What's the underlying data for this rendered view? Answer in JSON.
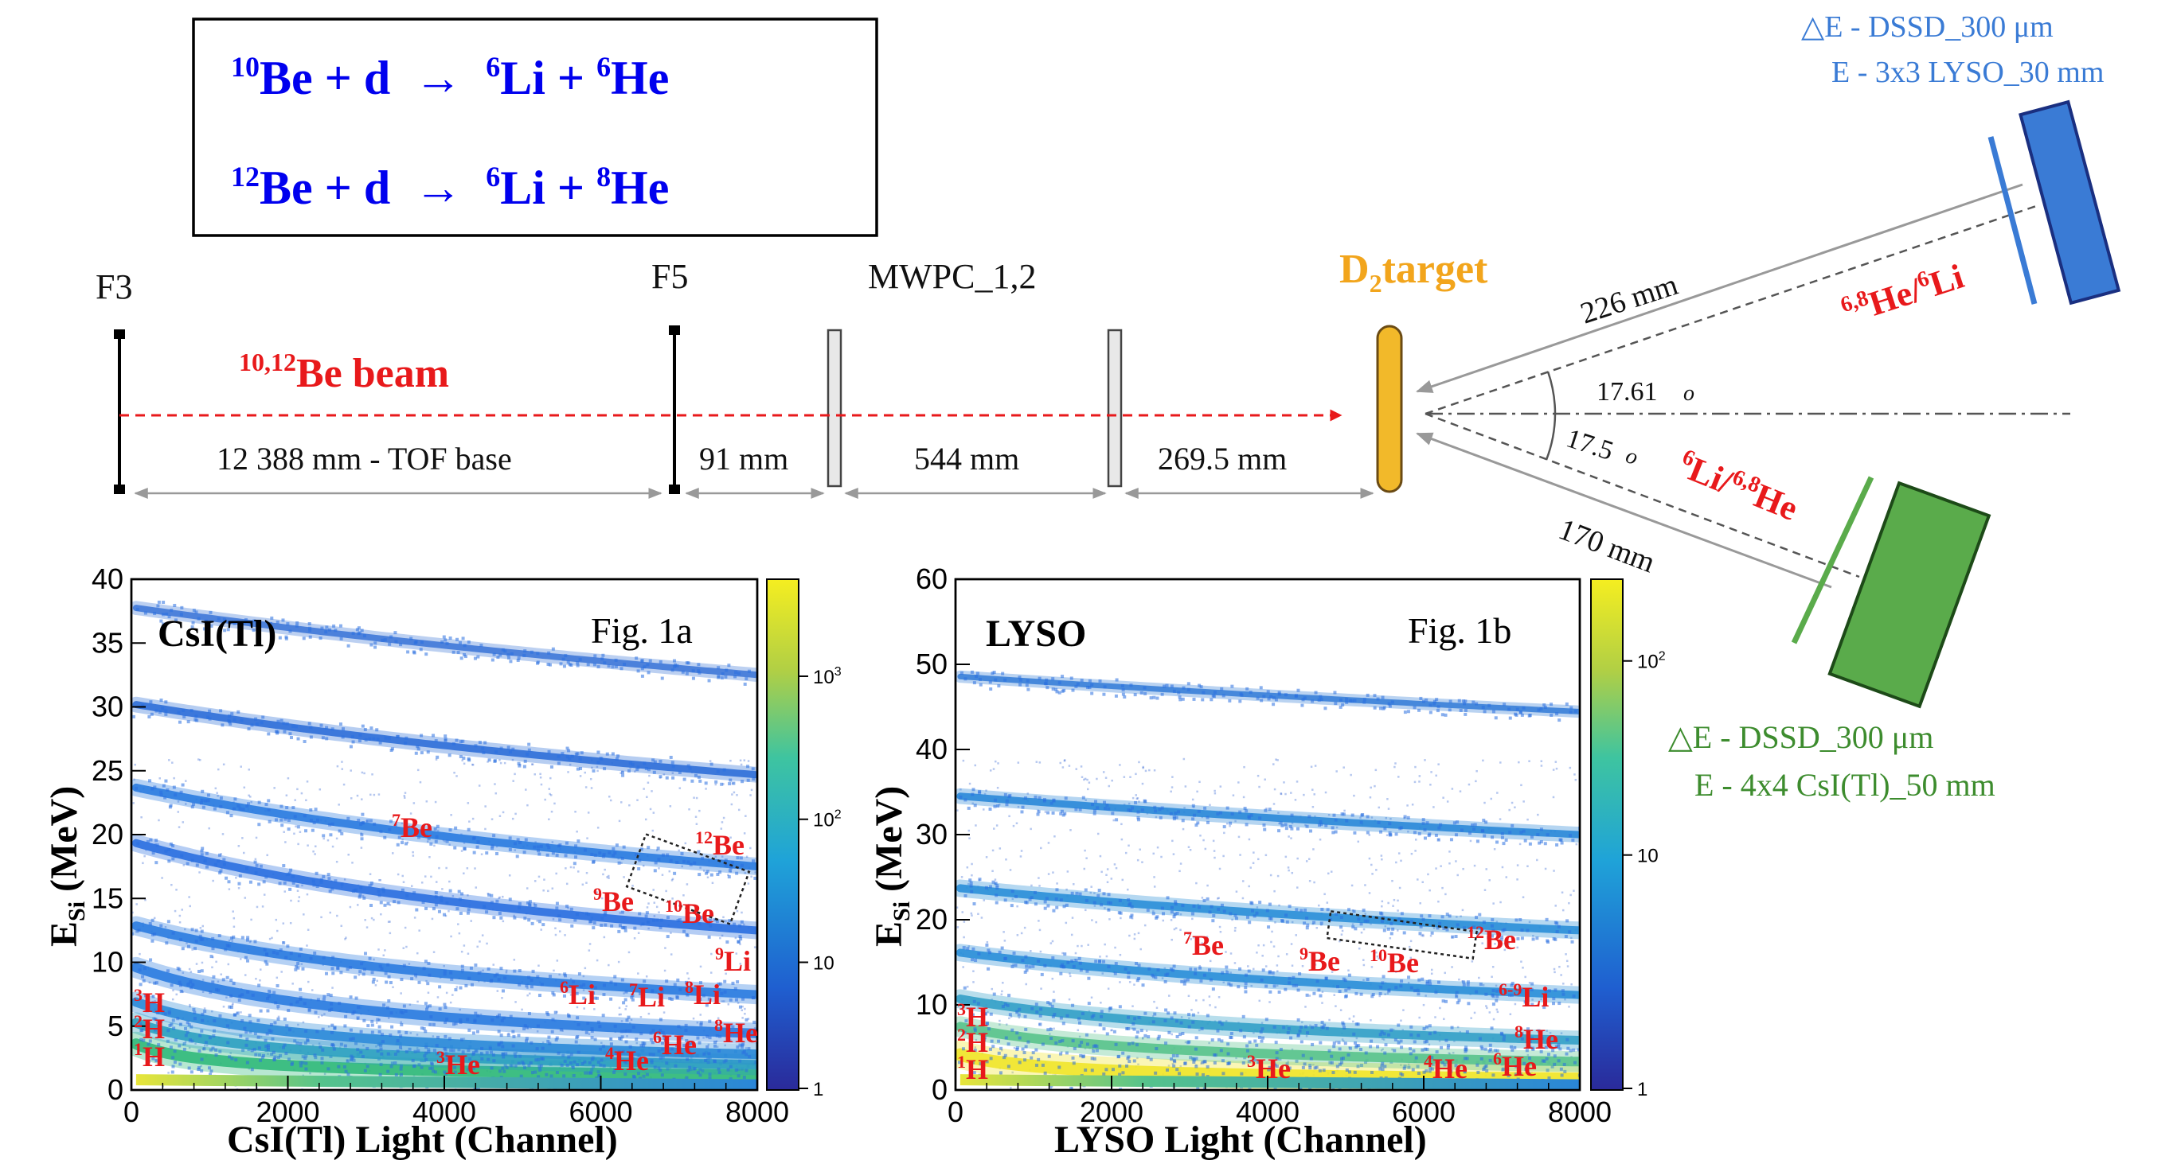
{
  "reactions": [
    {
      "a_mass": "10",
      "a": "Be",
      "b": " + d  →  ",
      "c_mass": "6",
      "c": "Li",
      "d": " + ",
      "e_mass": "6",
      "e": "He"
    },
    {
      "a_mass": "12",
      "a": "Be",
      "b": " + d  →  ",
      "c_mass": "6",
      "c": "Li",
      "d": " + ",
      "e_mass": "8",
      "e": "He"
    }
  ],
  "beamline": {
    "f3": "F3",
    "f5": "F5",
    "mwpc": "MWPC_1,2",
    "target_main": "D",
    "target_sub": "2",
    "target_rest": "target",
    "beam_mass": "10,12",
    "beam_rest": "Be beam",
    "dist_tof": "12 388 mm - TOF base",
    "dist_91": "91 mm",
    "dist_544": "544 mm",
    "dist_269": "269.5 mm",
    "dist_226": "226 mm",
    "dist_170": "170 mm",
    "angle_upper": "17.61",
    "angle_lower": "17.5",
    "degree_mark": "o"
  },
  "detectors": {
    "upper_label_mass1": "6,8",
    "upper_label_el1": "He/",
    "upper_label_mass2": "6",
    "upper_label_el2": "Li",
    "lower_label_mass1": "6",
    "lower_label_el1": "Li/",
    "lower_label_mass2": "6,8",
    "lower_label_el2": "He",
    "upper_de": "△E - DSSD_300 μm",
    "upper_e": "E - 3x3 LYSO_30 mm",
    "lower_de": "△E - DSSD_300 μm",
    "lower_e": "E - 4x4 CsI(Tl)_50 mm"
  },
  "colors": {
    "blue_text": "#0000ee",
    "red_text": "#e8191b",
    "target_orange": "#f2a51c",
    "upper_detector": "#3a7bd5",
    "lower_detector": "#5aab4b"
  },
  "chart_data": [
    {
      "type": "heatmap",
      "title": "Fig. 1a",
      "detector_label": "CsI(Tl)",
      "xlabel": "CsI(Tl) Light (Channel)",
      "ylabel_main": "E",
      "ylabel_sub": "Si",
      "ylabel_rest": " (MeV)",
      "xlim": [
        0,
        8000
      ],
      "ylim": [
        0,
        40
      ],
      "x_ticks": [
        "0",
        "2000",
        "4000",
        "6000",
        "8000"
      ],
      "y_ticks": [
        "0",
        "5",
        "10",
        "15",
        "20",
        "25",
        "30",
        "35",
        "40"
      ],
      "colorbar_ticks": [
        "1",
        "10",
        "10",
        "10"
      ],
      "colorbar_exps": [
        "",
        "",
        "2",
        "3"
      ],
      "log_color_scale": true,
      "isotopes": [
        {
          "mass": "7",
          "el": "Be"
        },
        {
          "mass": "12",
          "el": "Be"
        },
        {
          "mass": "9",
          "el": "Be"
        },
        {
          "mass": "10",
          "el": "Be"
        },
        {
          "mass": "9",
          "el": "Li"
        },
        {
          "mass": "6",
          "el": "Li"
        },
        {
          "mass": "7",
          "el": "Li"
        },
        {
          "mass": "8",
          "el": "Li"
        },
        {
          "mass": "8",
          "el": "He"
        },
        {
          "mass": "6",
          "el": "He"
        },
        {
          "mass": "4",
          "el": "He"
        },
        {
          "mass": "3",
          "el": "He"
        },
        {
          "mass": "3",
          "el": "H"
        },
        {
          "mass": "2",
          "el": "H"
        },
        {
          "mass": "1",
          "el": "H"
        }
      ]
    },
    {
      "type": "heatmap",
      "title": "Fig. 1b",
      "detector_label": "LYSO",
      "xlabel": "LYSO Light (Channel)",
      "ylabel_main": "E",
      "ylabel_sub": "Si",
      "ylabel_rest": " (MeV)",
      "xlim": [
        0,
        8000
      ],
      "ylim": [
        0,
        60
      ],
      "x_ticks": [
        "0",
        "2000",
        "4000",
        "6000",
        "8000"
      ],
      "y_ticks": [
        "0",
        "10",
        "20",
        "30",
        "40",
        "50",
        "60"
      ],
      "colorbar_ticks": [
        "1",
        "10",
        "10"
      ],
      "colorbar_exps": [
        "",
        "",
        "2"
      ],
      "log_color_scale": true,
      "isotopes": [
        {
          "mass": "12",
          "el": "Be"
        },
        {
          "mass": "7",
          "el": "Be"
        },
        {
          "mass": "9",
          "el": "Be"
        },
        {
          "mass": "10",
          "el": "Be"
        },
        {
          "mass": "6-9",
          "el": "Li"
        },
        {
          "mass": "8",
          "el": "He"
        },
        {
          "mass": "3",
          "el": "He"
        },
        {
          "mass": "4",
          "el": "He"
        },
        {
          "mass": "6",
          "el": "He"
        },
        {
          "mass": "3",
          "el": "H"
        },
        {
          "mass": "2",
          "el": "H"
        },
        {
          "mass": "1",
          "el": "H"
        }
      ]
    }
  ]
}
